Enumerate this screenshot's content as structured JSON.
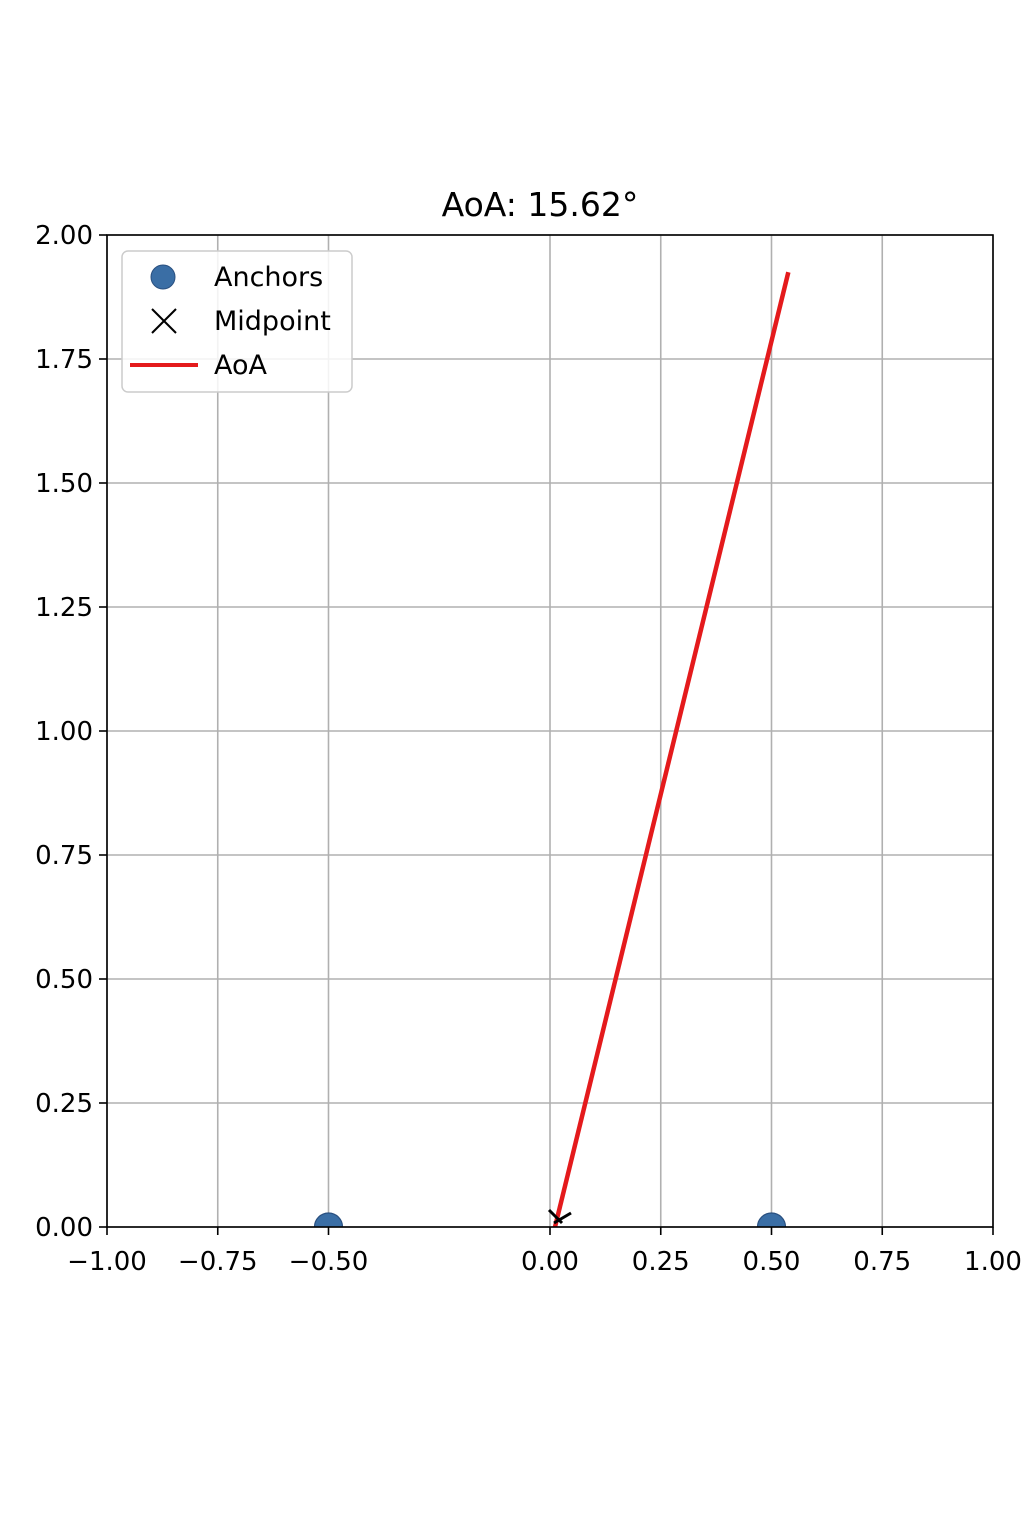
{
  "chart_data": {
    "type": "scatter",
    "title": "AoA: 15.62°",
    "xlabel": "",
    "ylabel": "",
    "xlim": [
      -1.0,
      1.0
    ],
    "ylim": [
      0.0,
      2.0
    ],
    "x_ticks": [
      -1.0,
      -0.75,
      -0.5,
      0.0,
      0.25,
      0.5,
      0.75,
      1.0
    ],
    "x_tick_labels": [
      "−1.00",
      "−0.75",
      "−0.50",
      "0.00",
      "0.25",
      "0.50",
      "0.75",
      "1.00"
    ],
    "x_grid": [
      -1.0,
      -0.75,
      -0.5,
      0.0,
      0.25,
      0.5,
      0.75,
      1.0
    ],
    "y_ticks": [
      0.0,
      0.25,
      0.5,
      0.75,
      1.0,
      1.25,
      1.5,
      1.75,
      2.0
    ],
    "y_tick_labels": [
      "0.00",
      "0.25",
      "0.50",
      "0.75",
      "1.00",
      "1.25",
      "1.50",
      "1.75",
      "2.00"
    ],
    "grid": true,
    "legend_position": "upper-left",
    "series": [
      {
        "name": "Anchors",
        "kind": "scatter",
        "marker": "circle",
        "color": "#3a6ea5",
        "points": [
          [
            -0.5,
            0.0
          ],
          [
            0.5,
            0.0
          ]
        ]
      },
      {
        "name": "Midpoint",
        "kind": "scatter",
        "marker": "x",
        "color": "#000000",
        "points": [
          [
            0.0,
            0.0
          ]
        ]
      },
      {
        "name": "AoA",
        "kind": "line",
        "color": "#e41a1c",
        "points": [
          [
            0.0,
            0.0
          ],
          [
            0.538,
            1.925
          ]
        ]
      }
    ]
  }
}
